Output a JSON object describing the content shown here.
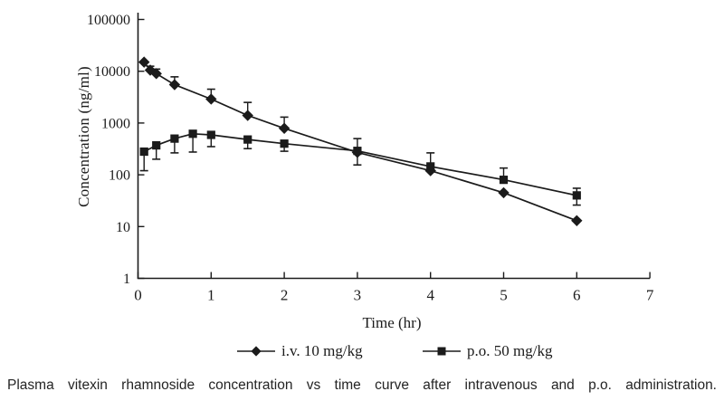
{
  "figure": {
    "caption": "Plasma vitexin rhamnoside concentration vs time curve after intravenous and p.o. administration."
  },
  "chart_data": {
    "type": "line",
    "title": "",
    "xlabel": "Time (hr)",
    "ylabel": "Concentration (ng/ml)",
    "x_scale": "linear",
    "y_scale": "log",
    "xlim": [
      0,
      7
    ],
    "ylim": [
      1,
      100000
    ],
    "x_ticks": [
      0,
      1,
      2,
      3,
      4,
      5,
      6,
      7
    ],
    "y_ticks": [
      1,
      10,
      100,
      1000,
      10000,
      100000
    ],
    "grid": false,
    "legend_position": "bottom",
    "line_color": "#1b1b1b",
    "series": [
      {
        "name": "i.v. 10 mg/kg",
        "marker": "diamond",
        "color": "#1b1b1b",
        "points": [
          {
            "t": 0.083,
            "c": 15000
          },
          {
            "t": 0.167,
            "c": 10500,
            "hi": 12500
          },
          {
            "t": 0.25,
            "c": 9000,
            "hi": 11000
          },
          {
            "t": 0.5,
            "c": 5500,
            "hi": 7800
          },
          {
            "t": 1,
            "c": 2900,
            "hi": 4500
          },
          {
            "t": 1.5,
            "c": 1400,
            "hi": 2500
          },
          {
            "t": 2,
            "c": 790,
            "hi": 1300
          },
          {
            "t": 3,
            "c": 270,
            "hi": 500,
            "lo": 155
          },
          {
            "t": 4,
            "c": 120
          },
          {
            "t": 5,
            "c": 45
          },
          {
            "t": 6,
            "c": 13
          }
        ]
      },
      {
        "name": "p.o. 50 mg/kg",
        "marker": "square",
        "color": "#1b1b1b",
        "points": [
          {
            "t": 0.083,
            "c": 280,
            "lo": 120
          },
          {
            "t": 0.25,
            "c": 370,
            "lo": 200
          },
          {
            "t": 0.5,
            "c": 500,
            "lo": 265
          },
          {
            "t": 0.75,
            "c": 620,
            "lo": 275
          },
          {
            "t": 1,
            "c": 590,
            "lo": 350
          },
          {
            "t": 1.5,
            "c": 480,
            "lo": 320
          },
          {
            "t": 2,
            "c": 400,
            "lo": 285
          },
          {
            "t": 3,
            "c": 290
          },
          {
            "t": 4,
            "c": 145,
            "hi": 265
          },
          {
            "t": 5,
            "c": 80,
            "hi": 135
          },
          {
            "t": 6,
            "c": 40,
            "hi": 55,
            "lo": 26
          }
        ]
      }
    ]
  }
}
